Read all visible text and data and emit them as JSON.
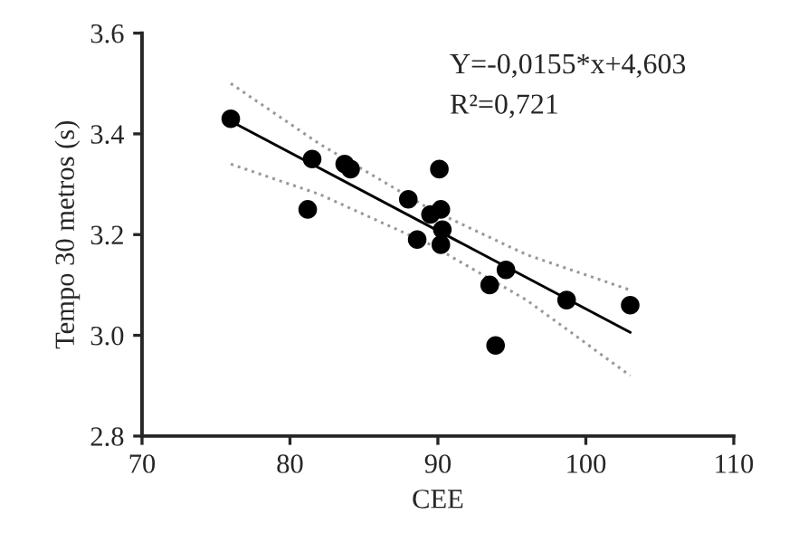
{
  "chart_data": {
    "type": "scatter",
    "xlabel": "CEE",
    "ylabel": "Tempo 30 metros (s)",
    "xlim": [
      70,
      110
    ],
    "xticks": [
      70,
      80,
      90,
      100,
      110
    ],
    "ylim": [
      2.8,
      3.6
    ],
    "yticks": [
      {
        "value": 2.8,
        "label": "2.8"
      },
      {
        "value": 3.0,
        "label": "3.0"
      },
      {
        "value": 3.2,
        "label": "3.2"
      },
      {
        "value": 3.4,
        "label": "3.4"
      },
      {
        "value": 3.6,
        "label": "3.6"
      }
    ],
    "grid": false,
    "legend": false,
    "annotations": [
      "Y=-0,0155*x+4,603",
      "R²=0,721"
    ],
    "series": [
      {
        "color": "#000000",
        "marker": "circle",
        "x": [
          76.0,
          81.5,
          81.2,
          83.7,
          84.1,
          88.0,
          88.6,
          89.5,
          90.1,
          90.2,
          90.3,
          90.2,
          93.5,
          94.6,
          93.9,
          98.7,
          103.0
        ],
        "values": [
          3.43,
          3.35,
          3.25,
          3.34,
          3.33,
          3.27,
          3.19,
          3.24,
          3.33,
          3.25,
          3.21,
          3.18,
          3.1,
          3.13,
          2.98,
          3.07,
          3.06
        ]
      },
      {
        "type": "line",
        "color": "#000000",
        "line_style": "solid",
        "marker": "none",
        "x": [
          76,
          103
        ],
        "values": [
          3.425,
          3.006
        ]
      },
      {
        "type": "line",
        "color": "#999999",
        "line_style": "dotted",
        "marker": "none",
        "x": [
          76,
          82,
          89.5,
          96,
          103
        ],
        "values": [
          3.5,
          3.38,
          3.25,
          3.16,
          3.09
        ]
      },
      {
        "type": "line",
        "color": "#999999",
        "line_style": "dotted",
        "marker": "none",
        "x": [
          76,
          82,
          89.5,
          96,
          103
        ],
        "values": [
          3.34,
          3.28,
          3.18,
          3.07,
          2.92
        ]
      }
    ]
  }
}
